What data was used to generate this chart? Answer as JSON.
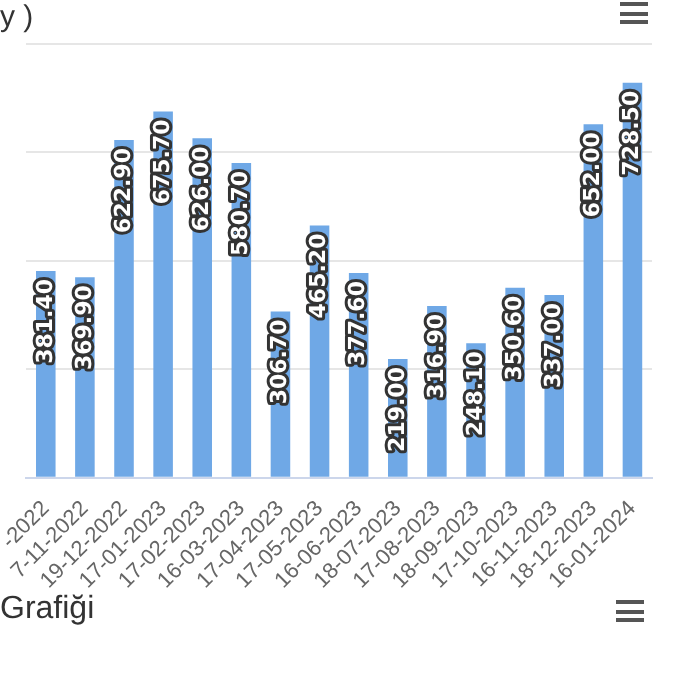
{
  "chart_data": {
    "type": "bar",
    "title": "y )",
    "annotations": [
      "Grafiği"
    ],
    "categories": [
      "-2022",
      "7-11-2022",
      "19-12-2022",
      "17-01-2023",
      "17-02-2023",
      "16-03-2023",
      "17-04-2023",
      "17-05-2023",
      "16-06-2023",
      "18-07-2023",
      "17-08-2023",
      "18-09-2023",
      "17-10-2023",
      "16-11-2023",
      "18-12-2023",
      "16-01-2024"
    ],
    "values": [
      381.4,
      369.9,
      622.9,
      675.7,
      626.0,
      580.7,
      306.7,
      465.2,
      377.6,
      219.0,
      316.9,
      248.1,
      350.6,
      337.0,
      652.0,
      728.5
    ],
    "value_labels": [
      "381.40",
      "369.90",
      "622.90",
      "675.70",
      "626.00",
      "580.70",
      "306.70",
      "465.20",
      "377.60",
      "219.00",
      "316.90",
      "248.10",
      "350.60",
      "337.00",
      "652.00",
      "728.50"
    ],
    "color": "#6fa8e6",
    "ylim": [
      0,
      800
    ],
    "yticks": [
      {
        "value": 0,
        "label": null
      },
      {
        "value": 200,
        "label": null
      },
      {
        "value": 400,
        "label": null
      },
      {
        "value": 600,
        "label": null
      },
      {
        "value": 800,
        "label": null
      }
    ],
    "grid": "y",
    "tick_labels": "x",
    "legend": false
  }
}
